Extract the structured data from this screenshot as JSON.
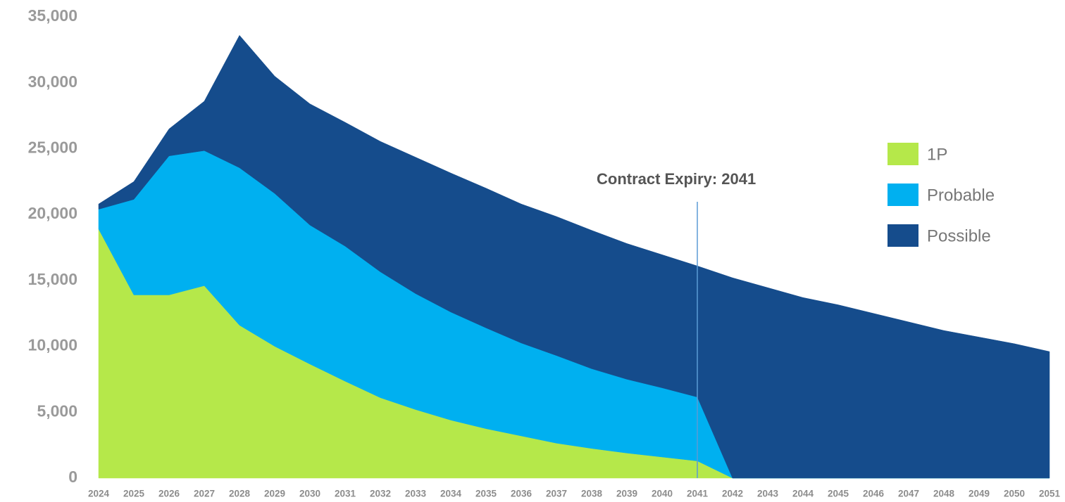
{
  "chart_data": {
    "type": "stacked_area",
    "categories": [
      "2024",
      "2025",
      "2026",
      "2027",
      "2028",
      "2029",
      "2030",
      "2031",
      "2032",
      "2033",
      "2034",
      "2035",
      "2036",
      "2037",
      "2038",
      "2039",
      "2040",
      "2041",
      "2042",
      "2043",
      "2044",
      "2045",
      "2046",
      "2047",
      "2048",
      "2049",
      "2050",
      "2051"
    ],
    "series": [
      {
        "name": "1P",
        "color": "#b5e84a",
        "values": [
          18900,
          13900,
          13900,
          14600,
          11600,
          10000,
          8650,
          7350,
          6100,
          5200,
          4400,
          3750,
          3200,
          2650,
          2250,
          1900,
          1600,
          1300,
          0,
          0,
          0,
          0,
          0,
          0,
          0,
          0,
          0,
          0
        ]
      },
      {
        "name": "Probable",
        "color": "#00b0f0",
        "values": [
          1500,
          7250,
          10550,
          10250,
          11950,
          11600,
          10550,
          10250,
          9550,
          8800,
          8200,
          7650,
          7050,
          6650,
          6050,
          5600,
          5250,
          4850,
          0,
          0,
          0,
          0,
          0,
          0,
          0,
          0,
          0,
          0
        ]
      },
      {
        "name": "Possible",
        "color": "#154c8c",
        "values": [
          400,
          1350,
          2050,
          3750,
          10050,
          8900,
          9200,
          9400,
          9900,
          10350,
          10550,
          10600,
          10550,
          10550,
          10500,
          10300,
          10100,
          9950,
          15200,
          14450,
          13700,
          13150,
          12500,
          11850,
          11200,
          10700,
          10200,
          9600
        ]
      }
    ],
    "ylim": [
      0,
      35000
    ],
    "yticks": [
      0,
      {
        "value": 5000,
        "label": "5,000"
      },
      {
        "value": 10000,
        "label": "10,000"
      },
      {
        "value": 15000,
        "label": "15,000"
      },
      {
        "value": 20000,
        "label": "20,000"
      },
      {
        "value": 25000,
        "label": "25,000"
      },
      {
        "value": 30000,
        "label": "30,000"
      },
      {
        "value": 35000,
        "label": "35,000"
      }
    ],
    "annotations": [
      {
        "text": "Contract Expiry: 2041",
        "category": "2041",
        "color": "#5b9bd5"
      }
    ],
    "legend": "right"
  }
}
